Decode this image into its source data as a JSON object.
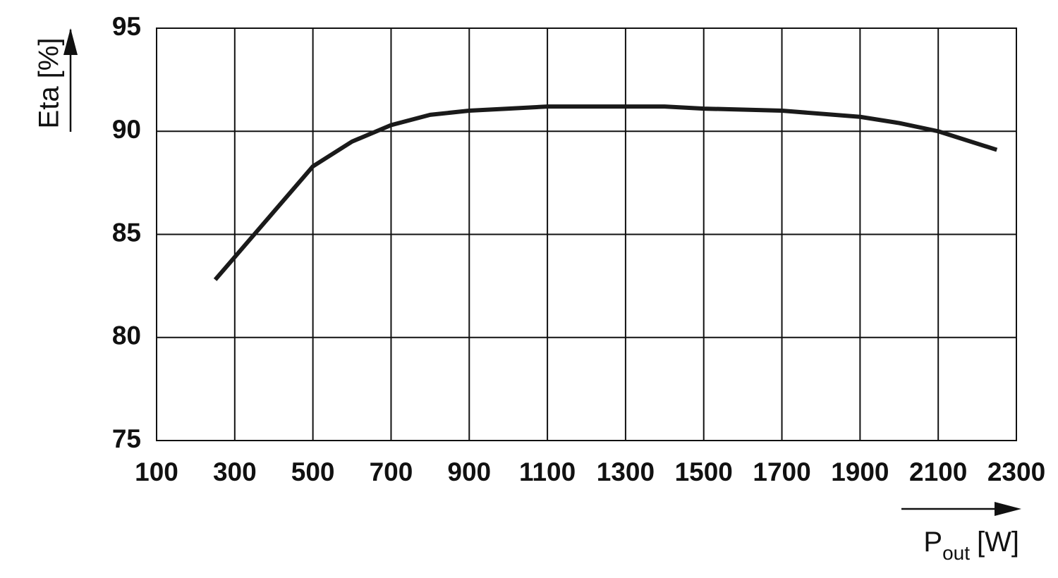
{
  "chart_data": {
    "type": "line",
    "ylabel": "Eta [%]",
    "xlabel": {
      "text": "P",
      "subscript": "out",
      "suffix": "[W]"
    },
    "x": [
      250,
      300,
      400,
      500,
      600,
      700,
      800,
      900,
      1000,
      1100,
      1300,
      1400,
      1500,
      1700,
      1900,
      2000,
      2100,
      2250
    ],
    "series": [
      {
        "color": "#1a1a1a",
        "values": [
          82.8,
          83.9,
          86.1,
          88.3,
          89.5,
          90.3,
          90.8,
          91.0,
          91.1,
          91.2,
          91.2,
          91.2,
          91.1,
          91.0,
          90.7,
          90.4,
          90.0,
          89.1
        ]
      }
    ],
    "xlim": [
      100,
      2300
    ],
    "xticks": [
      100,
      300,
      500,
      700,
      900,
      1100,
      1300,
      1500,
      1700,
      1900,
      2100,
      2300
    ],
    "ylim": [
      75,
      95
    ],
    "yticks": [
      75,
      80,
      85,
      90,
      95
    ],
    "grid": true
  }
}
